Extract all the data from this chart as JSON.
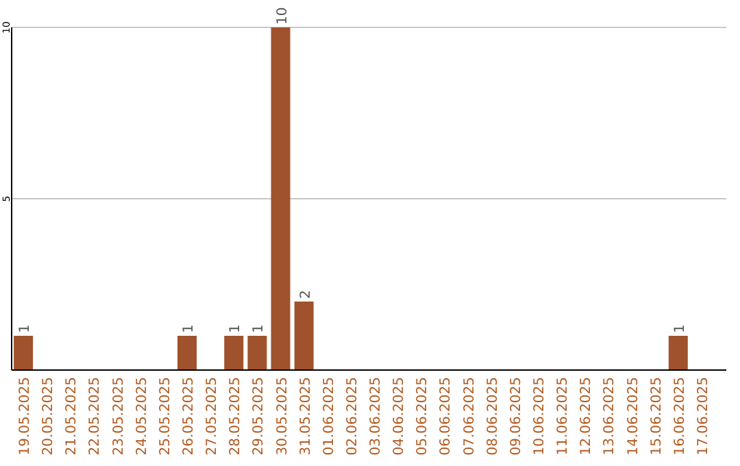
{
  "chart_data": {
    "type": "bar",
    "categories": [
      "19.05.2025",
      "20.05.2025",
      "21.05.2025",
      "22.05.2025",
      "23.05.2025",
      "24.05.2025",
      "25.05.2025",
      "26.05.2025",
      "27.05.2025",
      "28.05.2025",
      "29.05.2025",
      "30.05.2025",
      "31.05.2025",
      "01.06.2025",
      "02.06.2025",
      "03.06.2025",
      "04.06.2025",
      "05.06.2025",
      "06.06.2025",
      "07.06.2025",
      "08.06.2025",
      "09.06.2025",
      "10.06.2025",
      "11.06.2025",
      "12.06.2025",
      "13.06.2025",
      "14.06.2025",
      "15.06.2025",
      "16.06.2025",
      "17.06.2025"
    ],
    "values": [
      1,
      0,
      0,
      0,
      0,
      0,
      0,
      1,
      0,
      1,
      1,
      10,
      2,
      0,
      0,
      0,
      0,
      0,
      0,
      0,
      0,
      0,
      0,
      0,
      0,
      0,
      0,
      0,
      1,
      0
    ],
    "value_labels": [
      "1",
      null,
      null,
      null,
      null,
      null,
      null,
      "1",
      null,
      "1",
      "1",
      "10",
      "2",
      null,
      null,
      null,
      null,
      null,
      null,
      null,
      null,
      null,
      null,
      null,
      null,
      null,
      null,
      null,
      "1",
      null
    ],
    "color": "#a0522d",
    "ylim": [
      0,
      10
    ],
    "yticks": [
      {
        "value": 0,
        "label": null
      },
      5,
      10
    ],
    "grid": "y"
  }
}
